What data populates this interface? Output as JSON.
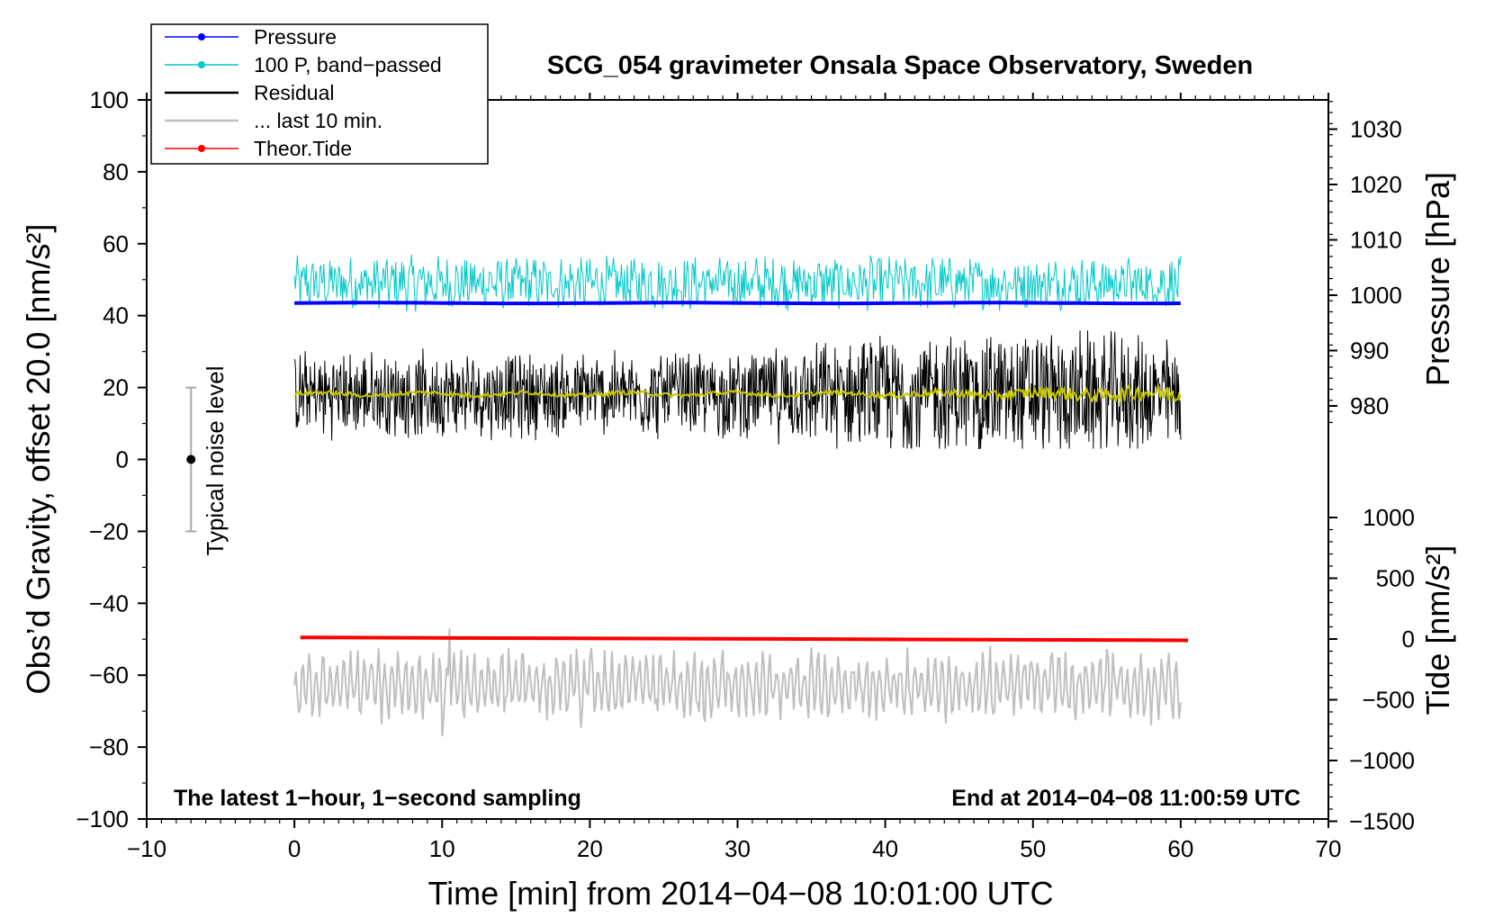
{
  "chart_data": {
    "type": "line",
    "title": "SCG_054 gravimeter Onsala Space Observatory, Sweden",
    "xlabel": "Time [min] from 2014−04−08 10:01:00 UTC",
    "ylabel": "Obs’d Gravity, offset 20.0 [nm/s²]",
    "ylabel_right_top": "Pressure [hPa]",
    "ylabel_right_bottom": "Tide [nm/s²]",
    "xlim": [
      -10,
      70
    ],
    "ylim": [
      -100,
      100
    ],
    "pressure_lim": [
      970,
      1035
    ],
    "tide_lim": [
      -1500,
      1000
    ],
    "x_ticks": [
      "−10",
      "0",
      "10",
      "20",
      "30",
      "40",
      "50",
      "60",
      "70"
    ],
    "y_ticks": [
      "−100",
      "−80",
      "−60",
      "−40",
      "−20",
      "0",
      "20",
      "40",
      "60",
      "80",
      "100"
    ],
    "pressure_ticks": [
      "980",
      "990",
      "1000",
      "1010",
      "1020",
      "1030"
    ],
    "tide_ticks": [
      "−1500",
      "−1000",
      "−500",
      "0",
      "500",
      "1000"
    ],
    "legend_position": "top-left",
    "series": [
      {
        "name": "Pressure",
        "color": "#0000ff",
        "style": "line-dot",
        "approx_level_nms2": 43.5
      },
      {
        "name": "100 P, band−passed",
        "color": "#00c8c8",
        "style": "line-dot",
        "approx_center_nms2": 49,
        "approx_range_nms2": [
          41,
          58
        ]
      },
      {
        "name": "Residual",
        "color": "#000000",
        "style": "line",
        "approx_center_nms2": 18,
        "approx_range_nms2": [
          3,
          36
        ]
      },
      {
        "name": "... last 10 min.",
        "color": "#c0c0c0",
        "style": "line",
        "approx_center_nms2": -63,
        "approx_range_nms2": [
          -77,
          -47
        ]
      },
      {
        "name": "Theor.Tide",
        "color": "#ff0000",
        "style": "line-dot",
        "approx_start_nms2": -49.5,
        "approx_end_nms2": -50.3
      }
    ],
    "smoothed_residual": {
      "color": "#c8c800",
      "approx_center_nms2": 18.2
    },
    "annotations": {
      "noise_label": "Typical noise level",
      "noise_bar_nms2": [
        -20,
        20
      ],
      "noise_bar_x_min": -7,
      "bottom_left": "The latest 1−hour, 1−second sampling",
      "bottom_right": "End at 2014−04−08 11:00:59 UTC"
    }
  }
}
